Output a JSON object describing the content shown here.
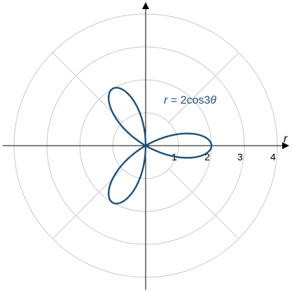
{
  "chart_data": {
    "type": "line",
    "coordinate_system": "polar",
    "title": "",
    "radial_axis_label": "r",
    "radial_ticks": [
      1,
      2,
      3,
      4
    ],
    "radial_tick_labels": [
      "1",
      "2",
      "3",
      "4"
    ],
    "rlim": [
      0,
      4
    ],
    "grid_circles": [
      1,
      2,
      3,
      4
    ],
    "grid_ray_angles_deg": [
      45,
      135,
      225,
      315
    ],
    "grid": true,
    "series": [
      {
        "equation": "r = 2cos3θ",
        "curve_color": "#1f4e79",
        "theta_range_rad": [
          0,
          3.14159
        ],
        "points": [
          {
            "theta": 0,
            "r": 2
          },
          {
            "theta": 0.1745,
            "r": 1.732
          },
          {
            "theta": 0.3491,
            "r": 1.0
          },
          {
            "theta": 0.5236,
            "r": 0
          },
          {
            "theta": 0.6981,
            "r": -1.0
          },
          {
            "theta": 0.8727,
            "r": -1.732
          },
          {
            "theta": 1.0472,
            "r": -2
          },
          {
            "theta": 1.2217,
            "r": -1.732
          },
          {
            "theta": 1.3963,
            "r": -1.0
          },
          {
            "theta": 1.5708,
            "r": 0
          },
          {
            "theta": 1.7453,
            "r": 1.0
          },
          {
            "theta": 1.9199,
            "r": 1.732
          },
          {
            "theta": 2.0944,
            "r": 2
          },
          {
            "theta": 2.2689,
            "r": 1.732
          },
          {
            "theta": 2.4435,
            "r": 1.0
          },
          {
            "theta": 2.618,
            "r": 0
          },
          {
            "theta": 2.7925,
            "r": -1.0
          },
          {
            "theta": 2.9671,
            "r": -1.732
          },
          {
            "theta": 3.1416,
            "r": -2
          }
        ]
      }
    ],
    "annotation_parts": {
      "lhs": "r",
      "rhs": " = 2cos3",
      "var": "θ"
    }
  }
}
